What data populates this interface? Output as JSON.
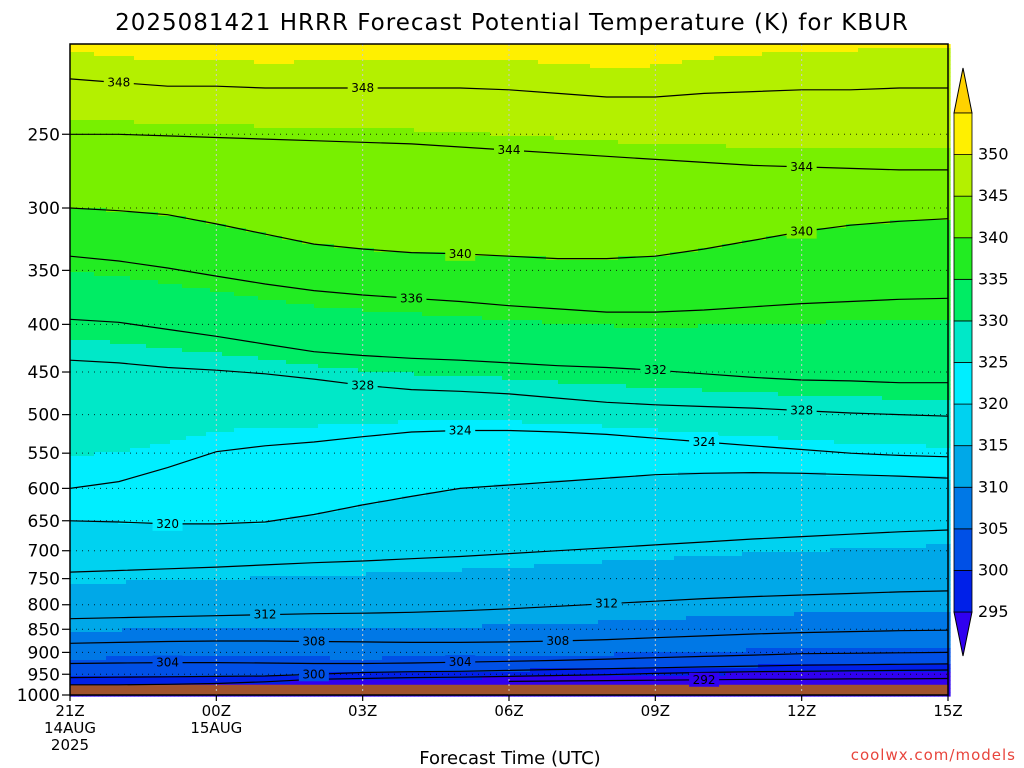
{
  "chart_data": {
    "type": "heatmap",
    "title": "2025081421 HRRR Forecast Potential Temperature (K) for KBUR",
    "xlabel": "Forecast Time (UTC)",
    "ylabel": "",
    "credit": "coolwx.com/models",
    "x_ticks": [
      {
        "hour": 0,
        "lines": [
          "21Z",
          "14AUG",
          "2025"
        ]
      },
      {
        "hour": 3,
        "lines": [
          "00Z",
          "15AUG"
        ]
      },
      {
        "hour": 6,
        "lines": [
          "03Z"
        ]
      },
      {
        "hour": 9,
        "lines": [
          "06Z"
        ]
      },
      {
        "hour": 12,
        "lines": [
          "09Z"
        ]
      },
      {
        "hour": 15,
        "lines": [
          "12Z"
        ]
      },
      {
        "hour": 18,
        "lines": [
          "15Z"
        ]
      }
    ],
    "xlim": [
      0,
      18
    ],
    "y_ticks": [
      250,
      300,
      350,
      400,
      450,
      500,
      550,
      600,
      650,
      700,
      750,
      800,
      850,
      900,
      950,
      1000
    ],
    "ylim": [
      1000,
      200
    ],
    "y_scale": "log-pressure",
    "ground_level_hpa": 975,
    "ground_color": "#a0522d",
    "colorbar": {
      "levels": [
        290,
        295,
        300,
        305,
        310,
        315,
        320,
        325,
        330,
        335,
        340,
        345,
        350,
        355
      ],
      "labels": [
        295,
        300,
        305,
        310,
        315,
        320,
        325,
        330,
        335,
        340,
        345,
        350
      ],
      "colors": [
        "#3000f0",
        "#0020e8",
        "#0050e6",
        "#0078e6",
        "#00a8e8",
        "#00d2f0",
        "#00eeff",
        "#00e8c8",
        "#00ec64",
        "#22ec22",
        "#78f000",
        "#b4f000",
        "#fff000",
        "#ffd200"
      ]
    },
    "x": [
      0,
      1,
      2,
      3,
      4,
      5,
      6,
      7,
      8,
      9,
      10,
      11,
      12,
      13,
      14,
      15,
      16,
      17,
      18
    ],
    "contour_levels": [
      292,
      296,
      300,
      304,
      308,
      312,
      316,
      320,
      324,
      328,
      332,
      336,
      340,
      344,
      348
    ],
    "isentrope_pressure_hpa": {
      "292": [
        null,
        null,
        null,
        null,
        null,
        null,
        null,
        null,
        null,
        967,
        966,
        965,
        964,
        963,
        962,
        962,
        961,
        961,
        960
      ],
      "296": [
        975,
        975,
        974,
        972,
        968,
        962,
        960,
        958,
        957,
        955,
        953,
        951,
        948,
        946,
        944,
        943,
        942,
        941,
        940
      ],
      "300": [
        958,
        957,
        956,
        955,
        954,
        950,
        946,
        944,
        943,
        941,
        939,
        937,
        935,
        933,
        931,
        929,
        928,
        927,
        926
      ],
      "304": [
        925,
        924,
        923,
        923,
        924,
        925,
        925,
        924,
        922,
        920,
        918,
        915,
        912,
        909,
        906,
        903,
        902,
        901,
        900
      ],
      "308": [
        880,
        878,
        876,
        875,
        875,
        876,
        877,
        878,
        878,
        877,
        875,
        872,
        868,
        864,
        860,
        857,
        855,
        853,
        852
      ],
      "312": [
        828,
        826,
        824,
        822,
        820,
        818,
        817,
        815,
        812,
        808,
        803,
        798,
        793,
        788,
        784,
        781,
        778,
        775,
        773
      ],
      "316": [
        738,
        735,
        732,
        729,
        725,
        721,
        718,
        714,
        710,
        705,
        700,
        695,
        690,
        685,
        680,
        676,
        672,
        668,
        665
      ],
      "320": [
        650,
        652,
        655,
        655,
        652,
        640,
        625,
        612,
        600,
        595,
        590,
        585,
        580,
        578,
        577,
        578,
        580,
        582,
        585
      ],
      "324": [
        600,
        590,
        570,
        548,
        540,
        535,
        528,
        522,
        520,
        520,
        522,
        525,
        530,
        535,
        540,
        545,
        550,
        553,
        555
      ],
      "328": [
        437,
        440,
        445,
        448,
        452,
        458,
        465,
        470,
        472,
        475,
        480,
        485,
        488,
        490,
        492,
        495,
        498,
        500,
        502
      ],
      "332": [
        395,
        398,
        405,
        412,
        420,
        428,
        432,
        435,
        437,
        440,
        443,
        445,
        448,
        452,
        456,
        459,
        460,
        462,
        462
      ],
      "336": [
        338,
        342,
        348,
        355,
        362,
        368,
        372,
        375,
        378,
        382,
        385,
        388,
        388,
        386,
        383,
        380,
        378,
        376,
        375
      ],
      "340": [
        300,
        302,
        305,
        312,
        320,
        328,
        332,
        335,
        336,
        338,
        340,
        340,
        338,
        332,
        325,
        318,
        313,
        310,
        308
      ],
      "344": [
        250,
        250,
        251,
        252,
        253,
        254,
        255,
        256,
        258,
        260,
        262,
        264,
        266,
        268,
        270,
        271,
        272,
        273,
        273
      ],
      "348": [
        218,
        220,
        222,
        222,
        223,
        223,
        223,
        223,
        223,
        224,
        226,
        228,
        228,
        226,
        225,
        224,
        224,
        223,
        223
      ]
    },
    "contour_labels": [
      {
        "level": 348,
        "text": "348",
        "x": 1.0
      },
      {
        "level": 348,
        "text": "348",
        "x": 6.0
      },
      {
        "level": 344,
        "text": "344",
        "x": 9.0
      },
      {
        "level": 344,
        "text": "344",
        "x": 15.0
      },
      {
        "level": 340,
        "text": "340",
        "x": 8.0
      },
      {
        "level": 340,
        "text": "340",
        "x": 15.0
      },
      {
        "level": 336,
        "text": "336",
        "x": 7.0
      },
      {
        "level": 332,
        "text": "332",
        "x": 12.0
      },
      {
        "level": 328,
        "text": "328",
        "x": 6.0
      },
      {
        "level": 328,
        "text": "328",
        "x": 15.0
      },
      {
        "level": 324,
        "text": "324",
        "x": 8.0
      },
      {
        "level": 324,
        "text": "324",
        "x": 13.0
      },
      {
        "level": 320,
        "text": "320",
        "x": 2.0
      },
      {
        "level": 312,
        "text": "312",
        "x": 4.0
      },
      {
        "level": 312,
        "text": "312",
        "x": 11.0
      },
      {
        "level": 308,
        "text": "308",
        "x": 5.0
      },
      {
        "level": 308,
        "text": "308",
        "x": 10.0
      },
      {
        "level": 304,
        "text": "304",
        "x": 2.0
      },
      {
        "level": 304,
        "text": "304",
        "x": 8.0
      },
      {
        "level": 300,
        "text": "300",
        "x": 5.0
      },
      {
        "level": 292,
        "text": "292",
        "x": 13.0
      }
    ],
    "grid": true
  }
}
